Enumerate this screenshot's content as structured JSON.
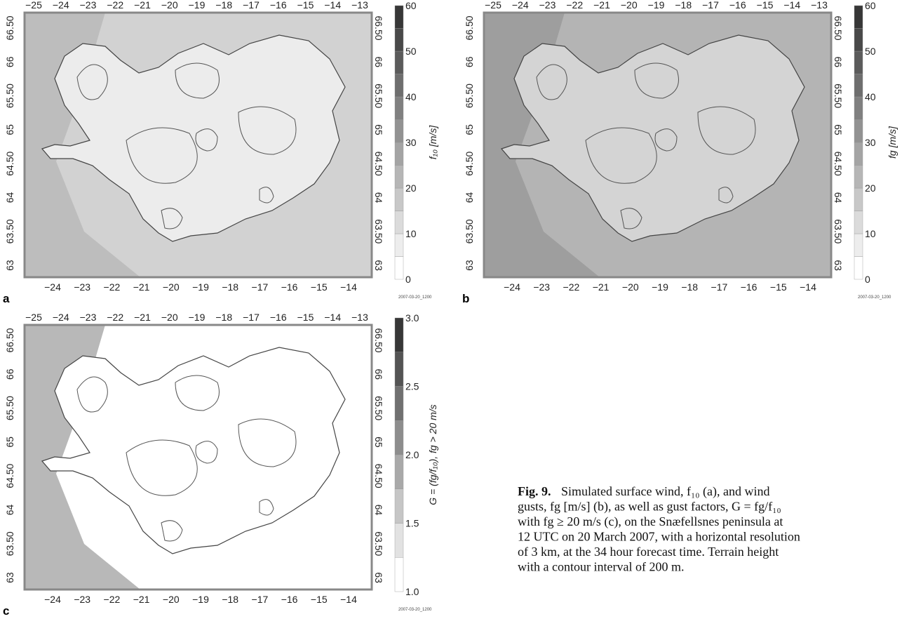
{
  "panels": [
    {
      "letter": "a",
      "top_ticks": [
        "−25",
        "−24",
        "−23",
        "−22",
        "−21",
        "−20",
        "−19",
        "−18",
        "−17",
        "−16",
        "−15",
        "−14",
        "−13"
      ],
      "bottom_ticks": [
        "−24",
        "−23",
        "−22",
        "−21",
        "−20",
        "−19",
        "−18",
        "−17",
        "−16",
        "−15",
        "−14"
      ],
      "lat_ticks": [
        "66.50",
        "66",
        "65.50",
        "65",
        "64.50",
        "64",
        "63.50",
        "63"
      ],
      "colorbar_ticks": [
        "0",
        "10",
        "20",
        "30",
        "40",
        "50",
        "60"
      ],
      "colorbar_label": "f₁₀ [m/s]",
      "timestamp": "2007-03-20_1200"
    },
    {
      "letter": "b",
      "top_ticks": [
        "−25",
        "−24",
        "−23",
        "−22",
        "−21",
        "−20",
        "−19",
        "−18",
        "−17",
        "−16",
        "−15",
        "−14",
        "−13"
      ],
      "bottom_ticks": [
        "−24",
        "−23",
        "−22",
        "−21",
        "−20",
        "−19",
        "−18",
        "−17",
        "−16",
        "−15",
        "−14"
      ],
      "lat_ticks": [
        "66.50",
        "66",
        "65.50",
        "65",
        "64.50",
        "64",
        "63.50",
        "63"
      ],
      "colorbar_ticks": [
        "0",
        "10",
        "20",
        "30",
        "40",
        "50",
        "60"
      ],
      "colorbar_label": "fg [m/s]",
      "timestamp": "2007-03-20_1200"
    },
    {
      "letter": "c",
      "top_ticks": [
        "−25",
        "−24",
        "−23",
        "−22",
        "−21",
        "−20",
        "−19",
        "−18",
        "−17",
        "−16",
        "−15",
        "−14",
        "−13"
      ],
      "bottom_ticks": [
        "−24",
        "−23",
        "−22",
        "−21",
        "−20",
        "−19",
        "−18",
        "−17",
        "−16",
        "−15",
        "−14"
      ],
      "lat_ticks": [
        "66.50",
        "66",
        "65.50",
        "65",
        "64.50",
        "64",
        "63.50",
        "63"
      ],
      "colorbar_ticks": [
        "1.0",
        "1.5",
        "2.0",
        "2.5",
        "3.0"
      ],
      "colorbar_label": "G = (fg/f₁₀), fg > 20 m/s",
      "timestamp": "2007-03-20_1200"
    }
  ],
  "caption": {
    "label": "Fig. 9.",
    "lines": [
      "Simulated surface wind, f₁₀ (a), and wind",
      "gusts, fg [m/s] (b), as well as gust factors, G = fg/f₁₀",
      "with fg ≥ 20 m/s (c), on the Snæfellsnes peninsula at",
      "12 UTC on 20 March 2007, with a horizontal resolution",
      "of 3 km, at the 34 hour forecast time. Terrain height",
      "with a contour interval of 200 m."
    ]
  }
}
